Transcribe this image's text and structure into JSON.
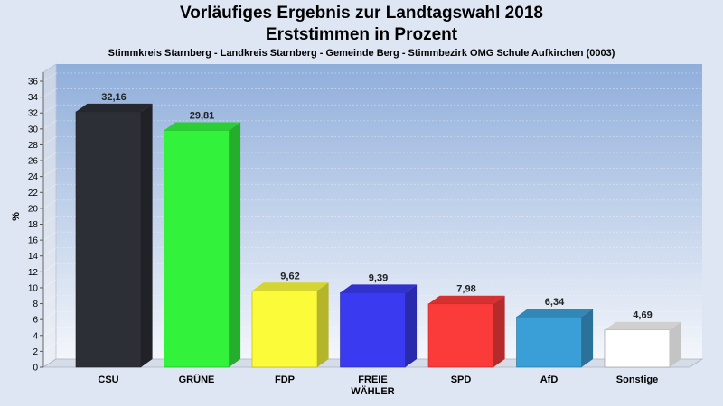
{
  "header": {
    "title_line1": "Vorläufiges Ergebnis zur Landtagswahl 2018",
    "title_line2": "Erststimmen in Prozent",
    "subtitle": "Stimmkreis Starnberg - Landkreis Starnberg - Gemeinde Berg - Stimmbezirk OMG Schule Aufkirchen (0003)"
  },
  "chart_data": {
    "type": "bar",
    "title": "Vorläufiges Ergebnis zur Landtagswahl 2018",
    "subtitle": "Erststimmen in Prozent",
    "xlabel": "",
    "ylabel": "%",
    "ylim": [
      0,
      36
    ],
    "ytick_step": 2,
    "grid": true,
    "categories": [
      "CSU",
      "GRÜNE",
      "FDP",
      "FREIE WÄHLER",
      "SPD",
      "AfD",
      "Sonstige"
    ],
    "category_labels": [
      [
        "CSU"
      ],
      [
        "GRÜNE"
      ],
      [
        "FDP"
      ],
      [
        "FREIE",
        "WÄHLER"
      ],
      [
        "SPD"
      ],
      [
        "AfD"
      ],
      [
        "Sonstige"
      ]
    ],
    "values": [
      32.16,
      29.81,
      9.62,
      9.39,
      7.98,
      6.34,
      4.69
    ],
    "value_labels": [
      "32,16",
      "29,81",
      "9,62",
      "9,39",
      "7,98",
      "6,34",
      "4,69"
    ],
    "colors": [
      "#2c2f36",
      "#33f23c",
      "#fbfb3a",
      "#3a3af0",
      "#fb3a3a",
      "#3a9fd6",
      "#ffffff"
    ]
  }
}
